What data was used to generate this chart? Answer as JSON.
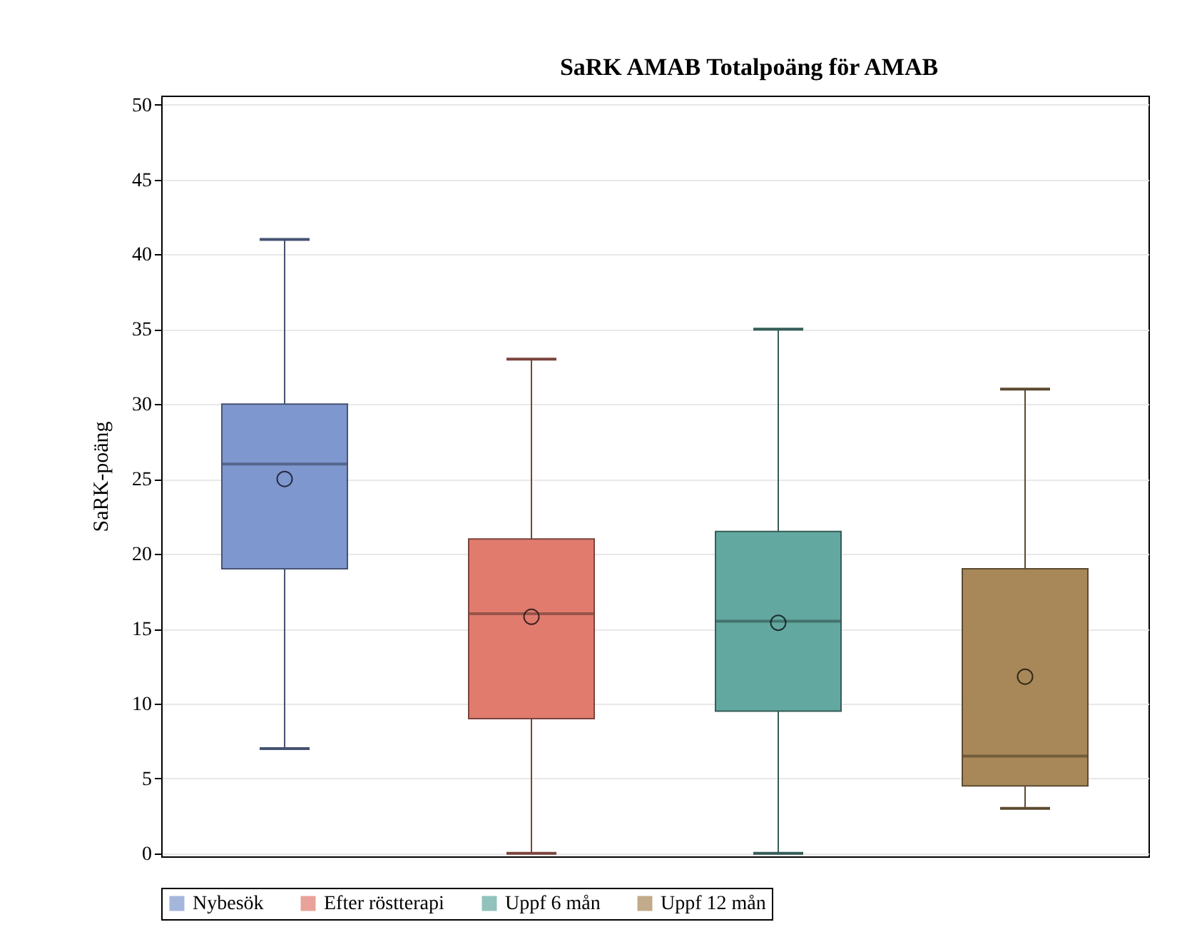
{
  "chart_data": {
    "type": "box",
    "title": "SaRK AMAB Totalpoäng för AMAB",
    "ylabel": "SaRK-poäng",
    "categories": [
      null,
      null,
      null,
      null
    ],
    "series": [
      {
        "name": "Nybesök",
        "color": "#7f97cf",
        "boxes": [
          {
            "low": 7,
            "q1": 19,
            "median": 26,
            "q3": 30,
            "high": 41,
            "mean": 25
          },
          null,
          null,
          null
        ]
      },
      {
        "name": "Efter röstterapi",
        "color": "#e07b6e",
        "boxes": [
          null,
          {
            "low": 0,
            "q1": 9,
            "median": 16,
            "q3": 21,
            "high": 33,
            "mean": 15.8
          },
          null,
          null
        ]
      },
      {
        "name": "Uppf 6 mån",
        "color": "#63a8a0",
        "boxes": [
          null,
          null,
          {
            "low": 0,
            "q1": 9.5,
            "median": 15.5,
            "q3": 21.5,
            "high": 35,
            "mean": 15.4
          },
          null
        ]
      },
      {
        "name": "Uppf 12 mån",
        "color": "#a88858",
        "boxes": [
          null,
          null,
          null,
          {
            "low": 3,
            "q1": 4.5,
            "median": 6.5,
            "q3": 19,
            "high": 31,
            "mean": 11.8
          }
        ]
      }
    ],
    "ylim": [
      -0.2,
      50.6
    ],
    "yticks": [
      0,
      5,
      10,
      15,
      20,
      25,
      30,
      35,
      40,
      45,
      50
    ],
    "grid": "y",
    "legend": "bottom",
    "tick_labels": "y"
  }
}
